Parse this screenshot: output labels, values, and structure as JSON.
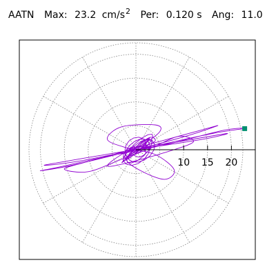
{
  "header": {
    "station": "AATN",
    "max_label": "Max:",
    "max_value": "23.2",
    "max_unit": "cm/s",
    "max_unit_exp": "2",
    "per_label": "Per:",
    "per_value": "0.120 s",
    "ang_label": "Ang:",
    "ang_value": "11.0"
  },
  "colors": {
    "trace": "#9000d0",
    "marker": "#009070",
    "grid": "#808080",
    "axis": "#000000",
    "frame": "#000000"
  },
  "chart_data": {
    "type": "polar-trajectory",
    "title": "",
    "radial_axis": {
      "ticks": [
        10,
        15,
        20
      ],
      "rlim": [
        0,
        22.4
      ],
      "grid_rings": [
        5,
        10,
        15,
        20
      ],
      "spoke_step_deg": 30,
      "grid": true
    },
    "peak": {
      "r": 23.2,
      "angle_deg": 11.0
    },
    "trace_points": [
      [
        0,
        0
      ],
      [
        14,
        2.2
      ],
      [
        19,
        3.4
      ],
      [
        8,
        1.5
      ],
      [
        -4,
        -0.6
      ],
      [
        -19,
        -3.2
      ],
      [
        -12,
        -2.4
      ],
      [
        2,
        0.4
      ],
      [
        16,
        3.4
      ],
      [
        23.2,
        4.5
      ],
      [
        18,
        4.0
      ],
      [
        6,
        1.0
      ],
      [
        -6,
        -1.4
      ],
      [
        -16,
        -3.6
      ],
      [
        -20,
        -4.4
      ],
      [
        -14,
        -3.4
      ],
      [
        -2,
        -0.5
      ],
      [
        10,
        2.7
      ],
      [
        17,
        5.0
      ],
      [
        14,
        4.2
      ],
      [
        3,
        1.2
      ],
      [
        -9,
        -2.2
      ],
      [
        -15,
        -4.0
      ],
      [
        -10,
        -4.6
      ],
      [
        -3,
        -2.0
      ],
      [
        3,
        0.3
      ],
      [
        9,
        2.8
      ],
      [
        12,
        1.6
      ],
      [
        6,
        -0.6
      ],
      [
        -2,
        -2.8
      ],
      [
        -6,
        -3.4
      ],
      [
        -3,
        -1.0
      ],
      [
        1,
        0.8
      ],
      [
        5,
        3.8
      ],
      [
        4,
        5.2
      ],
      [
        -3,
        4.8
      ],
      [
        -6,
        2.2
      ],
      [
        -2,
        0.4
      ],
      [
        4,
        -1.0
      ],
      [
        8,
        -4.2
      ],
      [
        6,
        -6.2
      ],
      [
        1,
        -4.4
      ],
      [
        -2,
        -2.0
      ],
      [
        1,
        0.2
      ],
      [
        4,
        1.8
      ],
      [
        3,
        2.6
      ],
      [
        0.5,
        1.0
      ],
      [
        -1,
        -0.5
      ],
      [
        0.5,
        -1.5
      ],
      [
        2,
        -0.8
      ],
      [
        1.5,
        0.5
      ],
      [
        0,
        0.6
      ],
      [
        -1,
        0
      ],
      [
        0,
        -0.8
      ],
      [
        1,
        -0.4
      ],
      [
        0.5,
        0.2
      ],
      [
        0,
        0
      ]
    ]
  }
}
